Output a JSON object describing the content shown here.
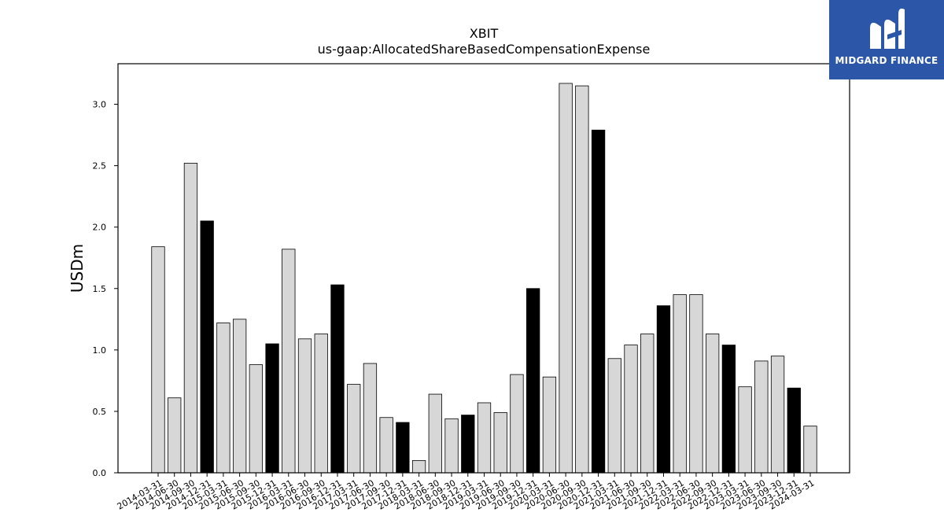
{
  "chart_data": {
    "type": "bar",
    "title": "XBIT",
    "subtitle": "us-gaap:AllocatedShareBasedCompensationExpense",
    "xlabel": "",
    "ylabel": "USDm",
    "ylim": [
      0,
      3.33
    ],
    "yticks": [
      "0.0",
      "0.5",
      "1.0",
      "1.5",
      "2.0",
      "2.5",
      "3.0"
    ],
    "grid": false,
    "categories": [
      "2014-03-31",
      "2014-06-30",
      "2014-09-30",
      "2014-12-31",
      "2015-03-31",
      "2015-06-30",
      "2015-09-30",
      "2015-12-31",
      "2016-03-31",
      "2016-06-30",
      "2016-09-30",
      "2016-12-31",
      "2017-03-31",
      "2017-06-30",
      "2017-09-30",
      "2017-12-31",
      "2018-03-31",
      "2018-06-30",
      "2018-09-30",
      "2018-12-31",
      "2019-03-31",
      "2019-06-30",
      "2019-09-30",
      "2019-12-31",
      "2020-03-31",
      "2020-06-30",
      "2020-09-30",
      "2020-12-31",
      "2021-03-31",
      "2021-06-30",
      "2021-09-30",
      "2021-12-31",
      "2022-03-31",
      "2022-06-30",
      "2022-09-30",
      "2022-12-31",
      "2023-03-31",
      "2023-06-30",
      "2023-09-30",
      "2023-12-31",
      "2024-03-31"
    ],
    "values": [
      1.84,
      0.61,
      2.52,
      2.05,
      1.22,
      1.25,
      0.88,
      1.05,
      1.82,
      1.09,
      1.13,
      1.53,
      0.72,
      0.89,
      0.45,
      0.41,
      0.1,
      0.64,
      0.44,
      0.47,
      0.57,
      0.49,
      0.8,
      1.5,
      0.78,
      3.17,
      3.15,
      2.79,
      0.93,
      1.04,
      1.13,
      1.36,
      1.45,
      1.45,
      1.13,
      1.04,
      0.7,
      0.91,
      0.95,
      0.69,
      0.38
    ],
    "highlight_every": 4,
    "highlight_offset": 3,
    "colors": {
      "bar": "#d7d7d7",
      "highlight": "#000000",
      "edge": "#000000",
      "logo_bg": "#2c56a8"
    }
  },
  "logo": {
    "text": "MIDGARD FINANCE",
    "icon": "midgard-logo-icon"
  }
}
